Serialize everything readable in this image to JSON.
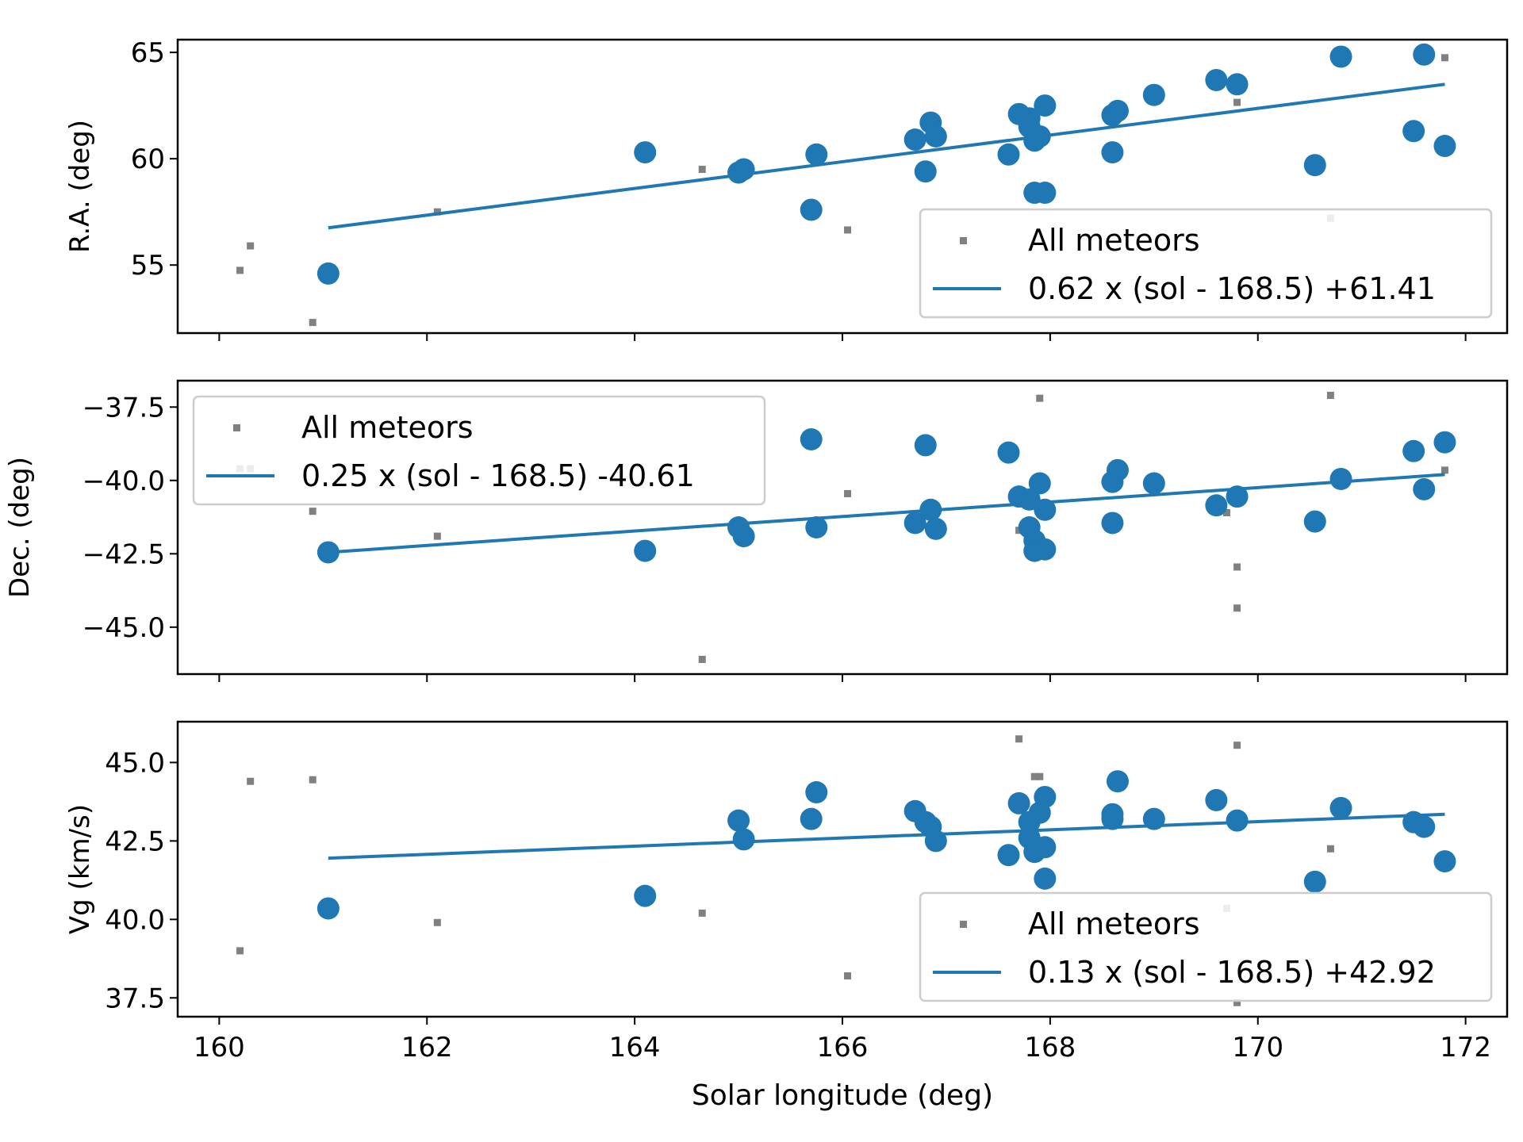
{
  "figure": {
    "xlabel": "Solar longitude (deg)"
  },
  "colors": {
    "fit": "#1f77b4",
    "all": "#808080",
    "axis": "#000000",
    "legend_border": "#cccccc"
  },
  "chart_data": [
    {
      "type": "scatter",
      "key": "ra",
      "title": "",
      "ylabel": "R.A. (deg)",
      "xlabel": "",
      "xlim": [
        159.6,
        172.4
      ],
      "ylim": [
        51.8,
        65.6
      ],
      "yticks": [
        55,
        60,
        65
      ],
      "yticklabels": [
        "55",
        "60",
        "65"
      ],
      "xticks": [
        160,
        162,
        164,
        166,
        168,
        170,
        172
      ],
      "xticklabels": [],
      "legend": {
        "position": "bottom-right",
        "all_label": "All meteors",
        "fit_label": "0.62 x (sol - 168.5) +61.41"
      },
      "fit": {
        "x": [
          161.05,
          171.8
        ],
        "y": [
          56.75,
          63.5
        ]
      },
      "all_meteors": [
        [
          160.2,
          54.75
        ],
        [
          160.3,
          55.9
        ],
        [
          160.9,
          52.3
        ],
        [
          162.1,
          57.5
        ],
        [
          164.65,
          59.5
        ],
        [
          166.05,
          56.65
        ],
        [
          169.8,
          62.65
        ],
        [
          170.7,
          57.2
        ],
        [
          171.8,
          64.75
        ]
      ],
      "selected": [
        [
          161.05,
          54.6
        ],
        [
          164.1,
          60.3
        ],
        [
          165.0,
          59.35
        ],
        [
          165.05,
          59.5
        ],
        [
          165.7,
          57.6
        ],
        [
          165.75,
          60.2
        ],
        [
          166.7,
          60.9
        ],
        [
          166.8,
          59.4
        ],
        [
          166.85,
          61.7
        ],
        [
          166.9,
          61.05
        ],
        [
          167.6,
          60.2
        ],
        [
          167.7,
          62.1
        ],
        [
          167.8,
          61.5
        ],
        [
          167.8,
          61.9
        ],
        [
          167.85,
          60.85
        ],
        [
          167.9,
          61.05
        ],
        [
          167.85,
          58.4
        ],
        [
          167.95,
          58.4
        ],
        [
          167.95,
          62.5
        ],
        [
          168.6,
          62.05
        ],
        [
          168.65,
          62.25
        ],
        [
          168.6,
          60.3
        ],
        [
          169.0,
          63.0
        ],
        [
          169.6,
          63.7
        ],
        [
          169.8,
          63.5
        ],
        [
          170.55,
          59.7
        ],
        [
          170.8,
          64.8
        ],
        [
          171.5,
          61.3
        ],
        [
          171.6,
          64.9
        ],
        [
          171.8,
          60.6
        ]
      ]
    },
    {
      "type": "scatter",
      "key": "dec",
      "title": "",
      "ylabel": "Dec. (deg)",
      "xlabel": "",
      "xlim": [
        159.6,
        172.4
      ],
      "ylim": [
        -46.6,
        -36.6
      ],
      "yticks": [
        -37.5,
        -40.0,
        -42.5,
        -45.0
      ],
      "yticklabels": [
        "−37.5",
        "−40.0",
        "−42.5",
        "−45.0"
      ],
      "xticks": [
        160,
        162,
        164,
        166,
        168,
        170,
        172
      ],
      "xticklabels": [],
      "legend": {
        "position": "top-left",
        "all_label": "All meteors",
        "fit_label": "0.25 x (sol - 168.5) -40.61"
      },
      "fit": {
        "x": [
          161.05,
          171.8
        ],
        "y": [
          -42.45,
          -39.8
        ]
      },
      "all_meteors": [
        [
          160.2,
          -39.6
        ],
        [
          160.3,
          -39.6
        ],
        [
          160.9,
          -41.05
        ],
        [
          162.1,
          -41.9
        ],
        [
          164.65,
          -46.1
        ],
        [
          166.05,
          -40.45
        ],
        [
          167.9,
          -37.2
        ],
        [
          169.8,
          -42.95
        ],
        [
          169.8,
          -44.35
        ],
        [
          169.7,
          -41.1
        ],
        [
          170.7,
          -37.1
        ],
        [
          171.8,
          -39.65
        ],
        [
          167.7,
          -41.7
        ]
      ],
      "selected": [
        [
          161.05,
          -42.45
        ],
        [
          164.1,
          -42.4
        ],
        [
          165.0,
          -41.6
        ],
        [
          165.05,
          -41.9
        ],
        [
          165.7,
          -38.6
        ],
        [
          165.75,
          -41.6
        ],
        [
          166.7,
          -41.45
        ],
        [
          166.8,
          -38.8
        ],
        [
          166.85,
          -41.0
        ],
        [
          166.9,
          -41.65
        ],
        [
          167.6,
          -39.05
        ],
        [
          167.7,
          -40.55
        ],
        [
          167.8,
          -41.6
        ],
        [
          167.8,
          -40.65
        ],
        [
          167.85,
          -42.05
        ],
        [
          167.85,
          -42.4
        ],
        [
          167.9,
          -40.1
        ],
        [
          167.95,
          -41.0
        ],
        [
          167.95,
          -42.35
        ],
        [
          168.6,
          -40.05
        ],
        [
          168.65,
          -39.65
        ],
        [
          168.6,
          -41.45
        ],
        [
          169.0,
          -40.1
        ],
        [
          169.6,
          -40.85
        ],
        [
          169.8,
          -40.55
        ],
        [
          170.55,
          -41.4
        ],
        [
          170.8,
          -39.95
        ],
        [
          171.5,
          -39.0
        ],
        [
          171.6,
          -40.3
        ],
        [
          171.8,
          -38.7
        ]
      ]
    },
    {
      "type": "scatter",
      "key": "vg",
      "title": "",
      "ylabel": "Vg (km/s)",
      "xlabel": "Solar longitude (deg)",
      "xlim": [
        159.6,
        172.4
      ],
      "ylim": [
        36.9,
        46.3
      ],
      "yticks": [
        37.5,
        40.0,
        42.5,
        45.0
      ],
      "yticklabels": [
        "37.5",
        "40.0",
        "42.5",
        "45.0"
      ],
      "xticks": [
        160,
        162,
        164,
        166,
        168,
        170,
        172
      ],
      "xticklabels": [
        "160",
        "162",
        "164",
        "166",
        "168",
        "170",
        "172"
      ],
      "legend": {
        "position": "bottom-right",
        "all_label": "All meteors",
        "fit_label": "0.13 x (sol - 168.5) +42.92"
      },
      "fit": {
        "x": [
          161.05,
          171.8
        ],
        "y": [
          41.95,
          43.35
        ]
      },
      "all_meteors": [
        [
          160.2,
          39.0
        ],
        [
          160.3,
          44.4
        ],
        [
          160.9,
          44.45
        ],
        [
          162.1,
          39.9
        ],
        [
          164.65,
          40.2
        ],
        [
          166.05,
          38.2
        ],
        [
          167.7,
          45.75
        ],
        [
          167.85,
          44.55
        ],
        [
          167.9,
          44.55
        ],
        [
          169.8,
          45.55
        ],
        [
          169.7,
          40.35
        ],
        [
          169.8,
          37.35
        ],
        [
          170.7,
          42.25
        ]
      ],
      "selected": [
        [
          161.05,
          40.35
        ],
        [
          164.1,
          40.75
        ],
        [
          165.0,
          43.15
        ],
        [
          165.05,
          42.55
        ],
        [
          165.7,
          43.2
        ],
        [
          165.75,
          44.05
        ],
        [
          166.7,
          43.45
        ],
        [
          166.8,
          43.1
        ],
        [
          166.85,
          42.95
        ],
        [
          166.9,
          42.5
        ],
        [
          167.6,
          42.05
        ],
        [
          167.7,
          43.7
        ],
        [
          167.8,
          43.1
        ],
        [
          167.8,
          42.6
        ],
        [
          167.85,
          42.15
        ],
        [
          167.9,
          43.4
        ],
        [
          167.95,
          42.3
        ],
        [
          167.95,
          43.9
        ],
        [
          167.95,
          41.3
        ],
        [
          168.6,
          43.35
        ],
        [
          168.65,
          44.4
        ],
        [
          168.6,
          43.2
        ],
        [
          169.0,
          43.2
        ],
        [
          169.6,
          43.8
        ],
        [
          169.8,
          43.15
        ],
        [
          170.55,
          41.2
        ],
        [
          170.8,
          43.55
        ],
        [
          171.5,
          43.1
        ],
        [
          171.6,
          42.95
        ],
        [
          171.8,
          41.85
        ]
      ]
    }
  ]
}
